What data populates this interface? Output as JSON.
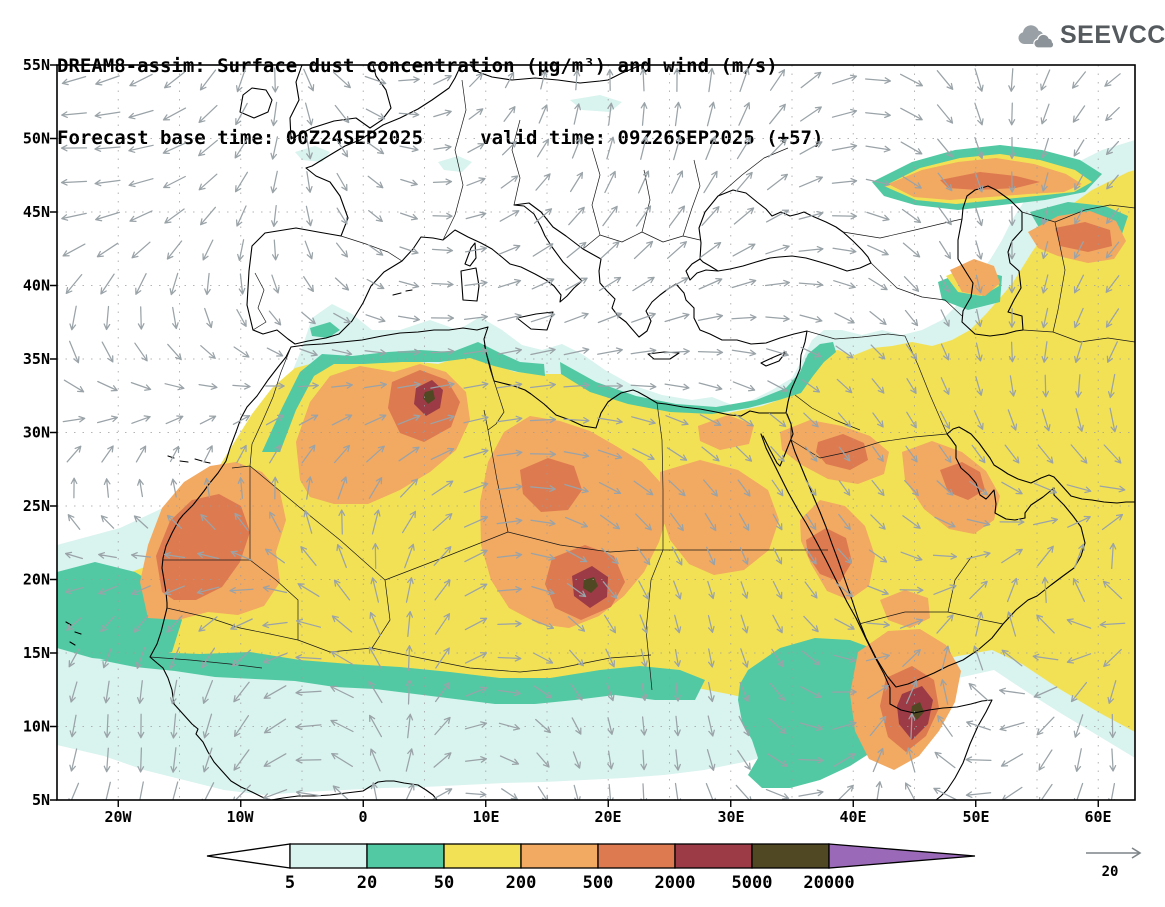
{
  "header": {
    "title_line1": "DREAM8-assim: Surface dust concentration (μg/m³) and wind (m/s)",
    "title_line2": "Forecast base time: 00Z24SEP2025     valid time: 09Z26SEP2025 (+57)",
    "logo_text": "SEEVCCC"
  },
  "axes": {
    "lat_labels": [
      "55N",
      "50N",
      "45N",
      "40N",
      "35N",
      "30N",
      "25N",
      "20N",
      "15N",
      "10N",
      "5N"
    ],
    "lon_labels": [
      "20W",
      "10W",
      "0",
      "10E",
      "20E",
      "30E",
      "40E",
      "50E",
      "60E"
    ]
  },
  "colorbar": {
    "labels": [
      "5",
      "20",
      "50",
      "200",
      "500",
      "2000",
      "5000",
      "20000"
    ],
    "colors": [
      "#ffffff",
      "#d9f3ee",
      "#52c9a3",
      "#f2e155",
      "#f2a962",
      "#dd7a50",
      "#9c3b46",
      "#4f4823",
      "#9a6ab8"
    ]
  },
  "wind_legend": {
    "value": "20"
  },
  "chart_data": {
    "type": "heatmap",
    "title": "DREAM8-assim: Surface dust concentration (μg/m³) and wind (m/s)",
    "forecast_base_time": "00Z24SEP2025",
    "valid_time": "09Z26SEP2025",
    "forecast_hour": "+57",
    "units": {
      "dust": "μg/m³",
      "wind": "m/s"
    },
    "lon_range_deg": [
      -25,
      63
    ],
    "lat_range_deg": [
      5,
      55
    ],
    "contour_levels": [
      5,
      20,
      50,
      200,
      500,
      2000,
      5000,
      20000
    ],
    "wind_reference_ms": 20,
    "grid": "lat/lon dotted graticule every 5 degrees",
    "features": [
      {
        "region": "Sahara belt (Mauritania-Mali-Algeria-Libya-Chad-Sudan) and Arabian Peninsula",
        "value": "widespread 50-500 μg/m³ (yellow/orange)"
      },
      {
        "region": "Northern Algeria ~5E,33N",
        "value": "local maximum 2000-5000 μg/m³"
      },
      {
        "region": "Bodele / Chad ~19E,18N",
        "value": "local maximum 2000-5000 μg/m³"
      },
      {
        "region": "Horn of Africa ~44E,10N",
        "value": "local maximum 2000-5000 μg/m³"
      },
      {
        "region": "North Caucasus / Caspian belt 40-50N, 35-63E",
        "value": "patches 50-500 μg/m³"
      },
      {
        "region": "Tropical Atlantic off West Africa",
        "value": "dust plume 5-200 μg/m³ reaching map edge"
      },
      {
        "region": "Sahel 7-11N",
        "value": "band 20-50 μg/m³"
      },
      {
        "region": "Mediterranean fringe 33-37N",
        "value": "5-50 μg/m³ along African coast"
      }
    ]
  }
}
